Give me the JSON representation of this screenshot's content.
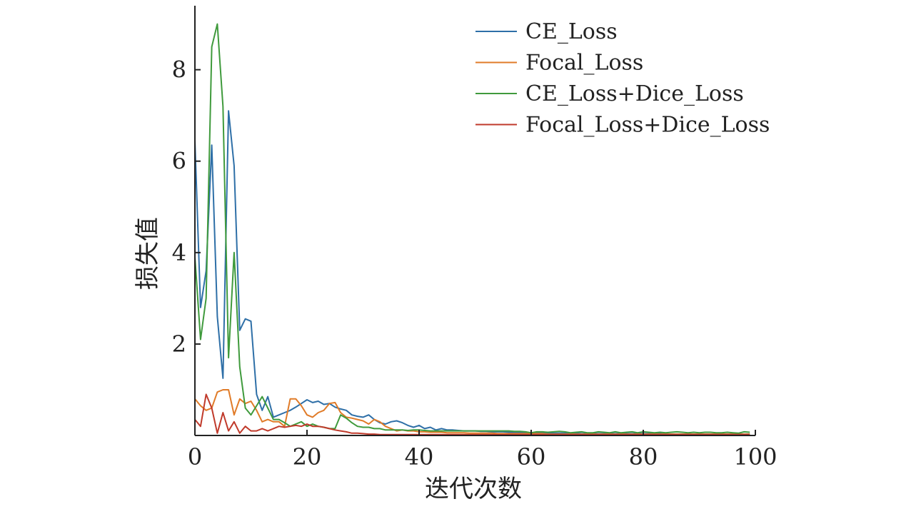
{
  "chart_data": {
    "type": "line",
    "xlabel": "迭代次数",
    "ylabel": "损失值",
    "xlim": [
      0,
      100
    ],
    "ylim": [
      0,
      9.4
    ],
    "x_ticks": [
      "0",
      "20",
      "40",
      "60",
      "80",
      "100"
    ],
    "y_ticks": [
      "2",
      "4",
      "6",
      "8"
    ],
    "grid": false,
    "legend_position": "top-right",
    "series": [
      {
        "name": "CE_Loss",
        "color": "#2e6fa7",
        "x": [
          0,
          1,
          2,
          3,
          4,
          5,
          6,
          7,
          8,
          9,
          10,
          11,
          12,
          13,
          14,
          15,
          16,
          17,
          18,
          19,
          20,
          21,
          22,
          23,
          24,
          25,
          26,
          27,
          28,
          29,
          30,
          31,
          32,
          33,
          34,
          35,
          36,
          37,
          38,
          39,
          40,
          41,
          42,
          43,
          44,
          45,
          46,
          47,
          48,
          49,
          50,
          51,
          52,
          53,
          54,
          55,
          56,
          57,
          58,
          59,
          60,
          61,
          62,
          63,
          64,
          65,
          66,
          67,
          68,
          69,
          70,
          71,
          72,
          73,
          74,
          75,
          76,
          77,
          78,
          79,
          80,
          81,
          82,
          83,
          84,
          85,
          86,
          87,
          88,
          89,
          90,
          91,
          92,
          93,
          94,
          95,
          96,
          97,
          98,
          99
        ],
        "y": [
          6.45,
          2.8,
          3.6,
          6.35,
          2.6,
          1.25,
          7.1,
          5.9,
          2.3,
          2.55,
          2.5,
          0.9,
          0.55,
          0.85,
          0.4,
          0.45,
          0.5,
          0.55,
          0.62,
          0.7,
          0.78,
          0.72,
          0.75,
          0.68,
          0.7,
          0.62,
          0.58,
          0.55,
          0.45,
          0.42,
          0.4,
          0.45,
          0.35,
          0.28,
          0.25,
          0.3,
          0.32,
          0.28,
          0.22,
          0.18,
          0.22,
          0.15,
          0.18,
          0.12,
          0.15,
          0.12,
          0.12,
          0.11,
          0.1,
          0.1,
          0.1,
          0.09,
          0.09,
          0.08,
          0.08,
          0.08,
          0.07,
          0.07,
          0.07,
          0.06,
          0.06,
          0.06,
          0.06,
          0.05,
          0.05,
          0.05,
          0.05,
          0.05,
          0.05,
          0.04,
          0.04,
          0.04,
          0.04,
          0.04,
          0.04,
          0.04,
          0.04,
          0.04,
          0.04,
          0.04,
          0.04,
          0.04,
          0.04,
          0.04,
          0.03,
          0.03,
          0.03,
          0.03,
          0.03,
          0.03,
          0.03,
          0.03,
          0.03,
          0.03,
          0.03,
          0.03,
          0.03,
          0.03,
          0.03,
          0.03
        ]
      },
      {
        "name": "Focal_Loss",
        "color": "#e07b28",
        "x": [
          0,
          1,
          2,
          3,
          4,
          5,
          6,
          7,
          8,
          9,
          10,
          11,
          12,
          13,
          14,
          15,
          16,
          17,
          18,
          19,
          20,
          21,
          22,
          23,
          24,
          25,
          26,
          27,
          28,
          29,
          30,
          31,
          32,
          33,
          34,
          35,
          36,
          37,
          38,
          39,
          40,
          41,
          42,
          43,
          44,
          45,
          46,
          47,
          48,
          49,
          50,
          51,
          52,
          53,
          54,
          55,
          56,
          57,
          58,
          59,
          60,
          61,
          62,
          63,
          64,
          65,
          66,
          67,
          68,
          69,
          70,
          71,
          72,
          73,
          74,
          75,
          76,
          77,
          78,
          79,
          80,
          81,
          82,
          83,
          84,
          85,
          86,
          87,
          88,
          89,
          90,
          91,
          92,
          93,
          94,
          95,
          96,
          97,
          98,
          99
        ],
        "y": [
          0.8,
          0.65,
          0.55,
          0.6,
          0.95,
          1.0,
          1.0,
          0.45,
          0.8,
          0.7,
          0.75,
          0.55,
          0.3,
          0.35,
          0.3,
          0.3,
          0.2,
          0.8,
          0.8,
          0.65,
          0.45,
          0.4,
          0.5,
          0.55,
          0.7,
          0.72,
          0.5,
          0.4,
          0.38,
          0.35,
          0.32,
          0.25,
          0.35,
          0.3,
          0.2,
          0.15,
          0.1,
          0.12,
          0.1,
          0.1,
          0.08,
          0.08,
          0.07,
          0.07,
          0.07,
          0.06,
          0.06,
          0.06,
          0.06,
          0.05,
          0.05,
          0.05,
          0.05,
          0.05,
          0.04,
          0.04,
          0.04,
          0.04,
          0.04,
          0.04,
          0.04,
          0.04,
          0.04,
          0.03,
          0.03,
          0.03,
          0.03,
          0.03,
          0.03,
          0.03,
          0.03,
          0.03,
          0.03,
          0.03,
          0.03,
          0.03,
          0.03,
          0.03,
          0.03,
          0.03,
          0.03,
          0.03,
          0.03,
          0.03,
          0.03,
          0.03,
          0.03,
          0.03,
          0.03,
          0.03,
          0.03,
          0.03,
          0.03,
          0.03,
          0.03,
          0.03,
          0.03,
          0.03,
          0.03,
          0.03
        ]
      },
      {
        "name": "CE_Loss+Dice_Loss",
        "color": "#3f9a3c",
        "x": [
          0,
          1,
          2,
          3,
          4,
          5,
          6,
          7,
          8,
          9,
          10,
          11,
          12,
          13,
          14,
          15,
          16,
          17,
          18,
          19,
          20,
          21,
          22,
          23,
          24,
          25,
          26,
          27,
          28,
          29,
          30,
          31,
          32,
          33,
          34,
          35,
          36,
          37,
          38,
          39,
          40,
          41,
          42,
          43,
          44,
          45,
          46,
          47,
          48,
          49,
          50,
          51,
          52,
          53,
          54,
          55,
          56,
          57,
          58,
          59,
          60,
          61,
          62,
          63,
          64,
          65,
          66,
          67,
          68,
          69,
          70,
          71,
          72,
          73,
          74,
          75,
          76,
          77,
          78,
          79,
          80,
          81,
          82,
          83,
          84,
          85,
          86,
          87,
          88,
          89,
          90,
          91,
          92,
          93,
          94,
          95,
          96,
          97,
          98,
          99
        ],
        "y": [
          3.9,
          2.1,
          3.0,
          8.5,
          9.0,
          7.2,
          1.7,
          4.0,
          1.5,
          0.6,
          0.45,
          0.65,
          0.85,
          0.6,
          0.35,
          0.35,
          0.28,
          0.2,
          0.25,
          0.3,
          0.2,
          0.25,
          0.2,
          0.18,
          0.15,
          0.15,
          0.45,
          0.38,
          0.28,
          0.2,
          0.18,
          0.18,
          0.15,
          0.15,
          0.12,
          0.12,
          0.12,
          0.12,
          0.11,
          0.12,
          0.12,
          0.11,
          0.1,
          0.1,
          0.1,
          0.1,
          0.1,
          0.1,
          0.1,
          0.1,
          0.1,
          0.1,
          0.1,
          0.1,
          0.1,
          0.1,
          0.1,
          0.09,
          0.09,
          0.08,
          0.06,
          0.08,
          0.08,
          0.07,
          0.08,
          0.09,
          0.08,
          0.06,
          0.07,
          0.08,
          0.06,
          0.06,
          0.08,
          0.07,
          0.06,
          0.08,
          0.06,
          0.07,
          0.08,
          0.06,
          0.08,
          0.07,
          0.06,
          0.07,
          0.06,
          0.07,
          0.08,
          0.07,
          0.06,
          0.07,
          0.06,
          0.07,
          0.07,
          0.06,
          0.06,
          0.07,
          0.06,
          0.05,
          0.08,
          0.07
        ]
      },
      {
        "name": "Focal_Loss+Dice_Loss",
        "color": "#c03a2b",
        "x": [
          0,
          1,
          2,
          3,
          4,
          5,
          6,
          7,
          8,
          9,
          10,
          11,
          12,
          13,
          14,
          15,
          16,
          17,
          18,
          19,
          20,
          21,
          22,
          23,
          24,
          25,
          26,
          27,
          28,
          29,
          30,
          31,
          32,
          33,
          34,
          35,
          36,
          37,
          38,
          39,
          40,
          41,
          42,
          43,
          44,
          45,
          46,
          47,
          48,
          49,
          50,
          51,
          52,
          53,
          54,
          55,
          56,
          57,
          58,
          59,
          60,
          61,
          62,
          63,
          64,
          65,
          66,
          67,
          68,
          69,
          70,
          71,
          72,
          73,
          74,
          75,
          76,
          77,
          78,
          79,
          80,
          81,
          82,
          83,
          84,
          85,
          86,
          87,
          88,
          89,
          90,
          91,
          92,
          93,
          94,
          95,
          96,
          97,
          98,
          99
        ],
        "y": [
          0.35,
          0.2,
          0.9,
          0.6,
          0.05,
          0.5,
          0.1,
          0.3,
          0.05,
          0.2,
          0.1,
          0.1,
          0.15,
          0.1,
          0.15,
          0.2,
          0.18,
          0.2,
          0.22,
          0.2,
          0.25,
          0.2,
          0.2,
          0.18,
          0.15,
          0.12,
          0.1,
          0.08,
          0.05,
          0.05,
          0.04,
          0.03,
          0.03,
          0.02,
          0.02,
          0.02,
          0.02,
          0.02,
          0.02,
          0.02,
          0.02,
          0.02,
          0.02,
          0.02,
          0.02,
          0.02,
          0.02,
          0.02,
          0.02,
          0.02,
          0.02,
          0.02,
          0.02,
          0.02,
          0.02,
          0.02,
          0.02,
          0.02,
          0.02,
          0.02,
          0.02,
          0.02,
          0.02,
          0.02,
          0.02,
          0.02,
          0.02,
          0.02,
          0.02,
          0.02,
          0.02,
          0.02,
          0.02,
          0.02,
          0.02,
          0.02,
          0.02,
          0.02,
          0.02,
          0.02,
          0.02,
          0.02,
          0.02,
          0.02,
          0.02,
          0.02,
          0.02,
          0.02,
          0.02,
          0.02,
          0.02,
          0.02,
          0.02,
          0.02,
          0.02,
          0.02,
          0.02,
          0.02,
          0.02,
          0.02
        ]
      }
    ]
  }
}
